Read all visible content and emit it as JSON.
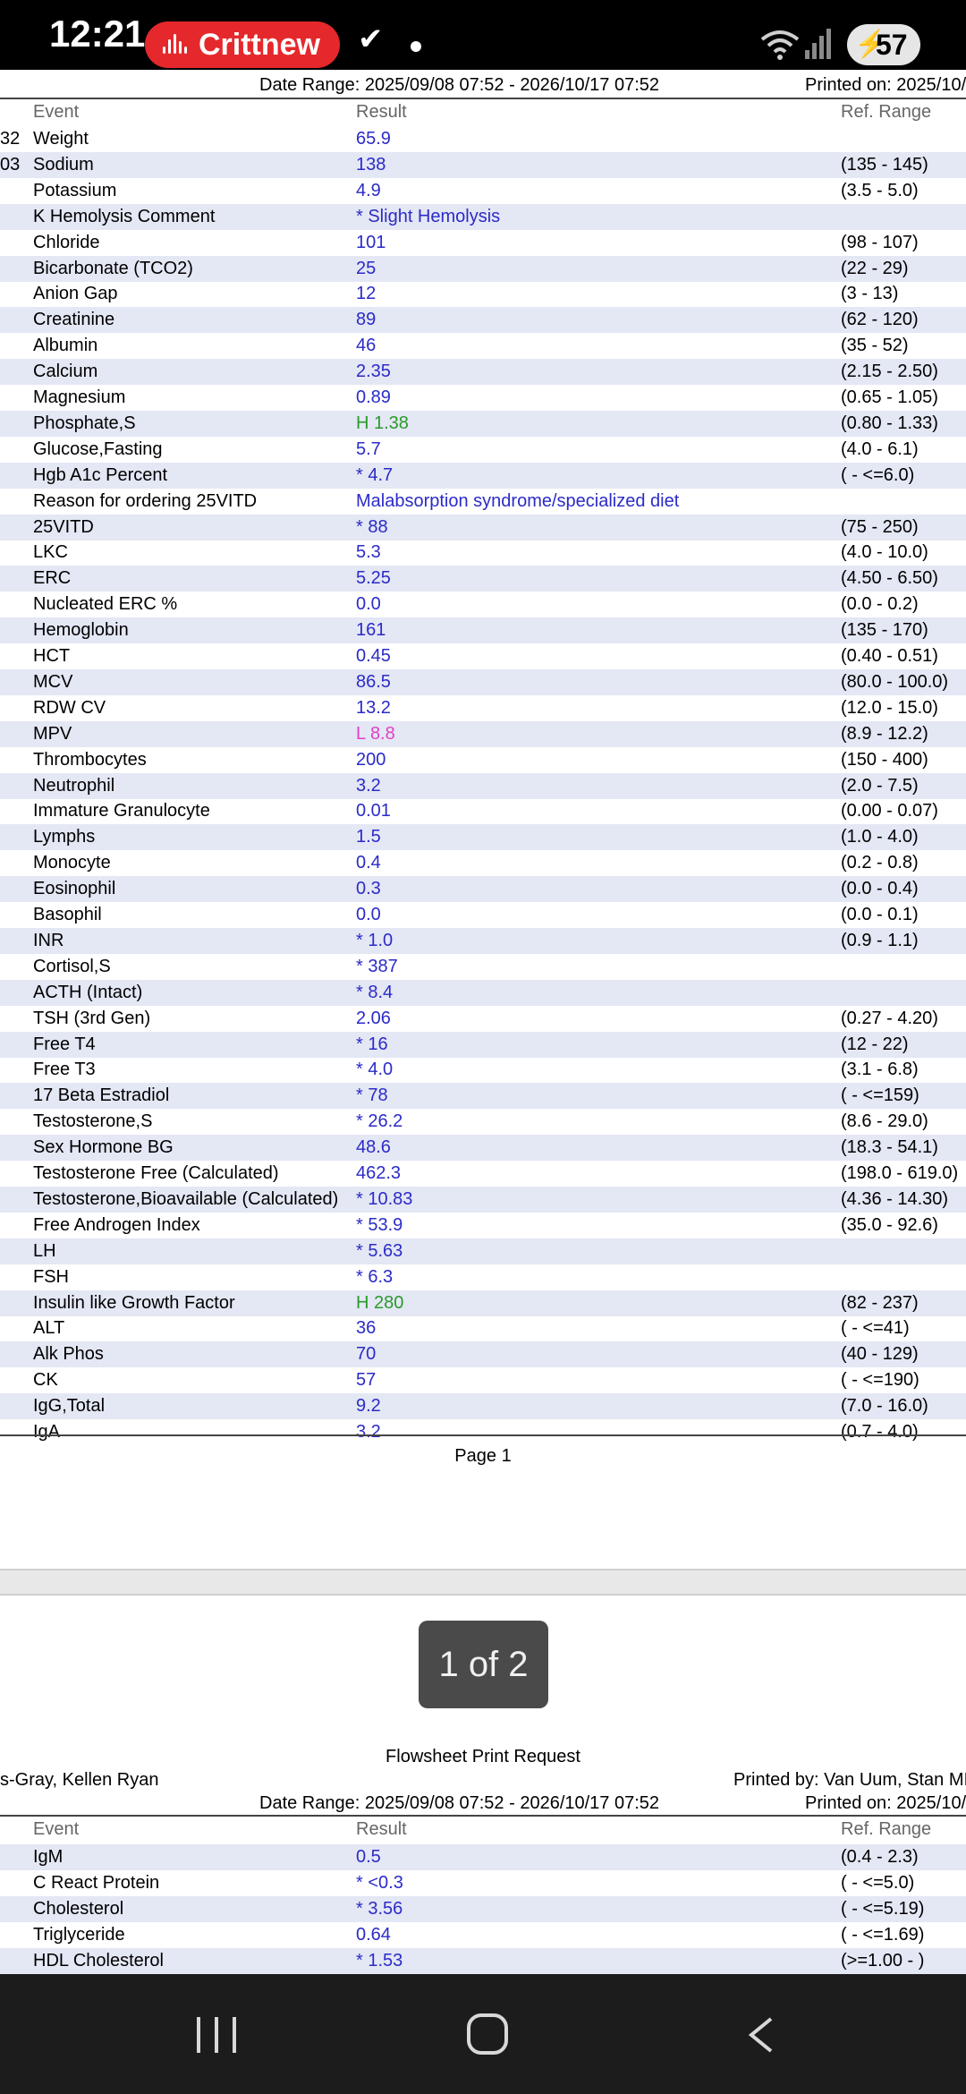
{
  "status_bar": {
    "time": "12:21",
    "recording_label": "Crittnew",
    "battery_percent": "57",
    "icons": [
      "voice-wave-icon",
      "check-icon",
      "dot-icon",
      "wifi-icon",
      "signal-icon",
      "battery-charging-icon"
    ]
  },
  "page1": {
    "date_range": "Date Range: 2025/09/08 07:52 - 2026/10/17 07:52",
    "printed_on": "Printed on: 2025/10/",
    "col_event": "Event",
    "col_result": "Result",
    "col_ref": "Ref. Range",
    "rows": [
      {
        "lead": "32",
        "event": "Weight",
        "result": "65.9",
        "ref": "",
        "flag": ""
      },
      {
        "lead": "03",
        "event": "Sodium",
        "result": "138",
        "ref": "(135 - 145)",
        "flag": ""
      },
      {
        "lead": "",
        "event": "Potassium",
        "result": "4.9",
        "ref": "(3.5 - 5.0)",
        "flag": ""
      },
      {
        "lead": "",
        "event": "K Hemolysis Comment",
        "result": "* Slight Hemolysis",
        "ref": "",
        "flag": ""
      },
      {
        "lead": "",
        "event": "Chloride",
        "result": "101",
        "ref": "(98 - 107)",
        "flag": ""
      },
      {
        "lead": "",
        "event": "Bicarbonate (TCO2)",
        "result": "25",
        "ref": "(22 - 29)",
        "flag": ""
      },
      {
        "lead": "",
        "event": "Anion Gap",
        "result": "12",
        "ref": "(3 - 13)",
        "flag": ""
      },
      {
        "lead": "",
        "event": "Creatinine",
        "result": "89",
        "ref": "(62 - 120)",
        "flag": ""
      },
      {
        "lead": "",
        "event": "Albumin",
        "result": "46",
        "ref": "(35 - 52)",
        "flag": ""
      },
      {
        "lead": "",
        "event": "Calcium",
        "result": "2.35",
        "ref": "(2.15 - 2.50)",
        "flag": ""
      },
      {
        "lead": "",
        "event": "Magnesium",
        "result": "0.89",
        "ref": "(0.65 - 1.05)",
        "flag": ""
      },
      {
        "lead": "",
        "event": "Phosphate,S",
        "result": "H 1.38",
        "ref": "(0.80 - 1.33)",
        "flag": "hi"
      },
      {
        "lead": "",
        "event": "Glucose,Fasting",
        "result": "5.7",
        "ref": "(4.0 - 6.1)",
        "flag": ""
      },
      {
        "lead": "",
        "event": "Hgb A1c Percent",
        "result": "* 4.7",
        "ref": "( - <=6.0)",
        "flag": ""
      },
      {
        "lead": "",
        "event": "Reason for ordering 25VITD",
        "result": "Malabsorption syndrome/specialized diet",
        "ref": "",
        "flag": ""
      },
      {
        "lead": "",
        "event": "25VITD",
        "result": "* 88",
        "ref": "(75 - 250)",
        "flag": ""
      },
      {
        "lead": "",
        "event": "LKC",
        "result": "5.3",
        "ref": "(4.0 - 10.0)",
        "flag": ""
      },
      {
        "lead": "",
        "event": "ERC",
        "result": "5.25",
        "ref": "(4.50 - 6.50)",
        "flag": ""
      },
      {
        "lead": "",
        "event": "Nucleated ERC %",
        "result": "0.0",
        "ref": "(0.0 - 0.2)",
        "flag": ""
      },
      {
        "lead": "",
        "event": "Hemoglobin",
        "result": "161",
        "ref": "(135 - 170)",
        "flag": ""
      },
      {
        "lead": "",
        "event": "HCT",
        "result": "0.45",
        "ref": "(0.40 - 0.51)",
        "flag": ""
      },
      {
        "lead": "",
        "event": "MCV",
        "result": "86.5",
        "ref": "(80.0 - 100.0)",
        "flag": ""
      },
      {
        "lead": "",
        "event": "RDW CV",
        "result": "13.2",
        "ref": "(12.0 - 15.0)",
        "flag": ""
      },
      {
        "lead": "",
        "event": "MPV",
        "result": "L 8.8",
        "ref": "(8.9 - 12.2)",
        "flag": "lo"
      },
      {
        "lead": "",
        "event": "Thrombocytes",
        "result": "200",
        "ref": "(150 - 400)",
        "flag": ""
      },
      {
        "lead": "",
        "event": "Neutrophil",
        "result": "3.2",
        "ref": "(2.0 - 7.5)",
        "flag": ""
      },
      {
        "lead": "",
        "event": "Immature Granulocyte",
        "result": "0.01",
        "ref": "(0.00 - 0.07)",
        "flag": ""
      },
      {
        "lead": "",
        "event": "Lymphs",
        "result": "1.5",
        "ref": "(1.0 - 4.0)",
        "flag": ""
      },
      {
        "lead": "",
        "event": "Monocyte",
        "result": "0.4",
        "ref": "(0.2 - 0.8)",
        "flag": ""
      },
      {
        "lead": "",
        "event": "Eosinophil",
        "result": "0.3",
        "ref": "(0.0 - 0.4)",
        "flag": ""
      },
      {
        "lead": "",
        "event": "Basophil",
        "result": "0.0",
        "ref": "(0.0 - 0.1)",
        "flag": ""
      },
      {
        "lead": "",
        "event": "INR",
        "result": "* 1.0",
        "ref": "(0.9 - 1.1)",
        "flag": ""
      },
      {
        "lead": "",
        "event": "Cortisol,S",
        "result": "* 387",
        "ref": "",
        "flag": ""
      },
      {
        "lead": "",
        "event": "ACTH (Intact)",
        "result": "* 8.4",
        "ref": "",
        "flag": ""
      },
      {
        "lead": "",
        "event": "TSH (3rd Gen)",
        "result": "2.06",
        "ref": "(0.27 - 4.20)",
        "flag": ""
      },
      {
        "lead": "",
        "event": "Free T4",
        "result": "* 16",
        "ref": "(12 - 22)",
        "flag": ""
      },
      {
        "lead": "",
        "event": "Free T3",
        "result": "* 4.0",
        "ref": "(3.1 - 6.8)",
        "flag": ""
      },
      {
        "lead": "",
        "event": "17 Beta Estradiol",
        "result": "* 78",
        "ref": "( - <=159)",
        "flag": ""
      },
      {
        "lead": "",
        "event": "Testosterone,S",
        "result": "* 26.2",
        "ref": "(8.6 - 29.0)",
        "flag": ""
      },
      {
        "lead": "",
        "event": "Sex Hormone BG",
        "result": "48.6",
        "ref": "(18.3 - 54.1)",
        "flag": ""
      },
      {
        "lead": "",
        "event": "Testosterone Free (Calculated)",
        "result": "462.3",
        "ref": "(198.0 - 619.0)",
        "flag": ""
      },
      {
        "lead": "",
        "event": "Testosterone,Bioavailable (Calculated)",
        "result": "* 10.83",
        "ref": "(4.36 - 14.30)",
        "flag": ""
      },
      {
        "lead": "",
        "event": "Free Androgen Index",
        "result": "* 53.9",
        "ref": "(35.0 - 92.6)",
        "flag": ""
      },
      {
        "lead": "",
        "event": "LH",
        "result": "* 5.63",
        "ref": "",
        "flag": ""
      },
      {
        "lead": "",
        "event": "FSH",
        "result": "* 6.3",
        "ref": "",
        "flag": ""
      },
      {
        "lead": "",
        "event": "Insulin like Growth Factor",
        "result": "H 280",
        "ref": "(82 - 237)",
        "flag": "hi"
      },
      {
        "lead": "",
        "event": "ALT",
        "result": "36",
        "ref": "( - <=41)",
        "flag": ""
      },
      {
        "lead": "",
        "event": "Alk Phos",
        "result": "70",
        "ref": "(40 - 129)",
        "flag": ""
      },
      {
        "lead": "",
        "event": "CK",
        "result": "57",
        "ref": "( - <=190)",
        "flag": ""
      },
      {
        "lead": "",
        "event": "IgG,Total",
        "result": "9.2",
        "ref": "(7.0 - 16.0)",
        "flag": ""
      },
      {
        "lead": "",
        "event": "IgA",
        "result": "3.2",
        "ref": "(0.7 - 4.0)",
        "flag": ""
      }
    ],
    "page_label": "Page 1"
  },
  "page_indicator": "1 of 2",
  "page2": {
    "title": "Flowsheet Print Request",
    "patient": "s-Gray, Kellen Ryan",
    "printed_by": "Printed by: Van Uum, Stan  MI",
    "date_range": "Date Range: 2025/09/08 07:52 - 2026/10/17 07:52",
    "printed_on": "Printed on: 2025/10/",
    "col_event": "Event",
    "col_result": "Result",
    "col_ref": "Ref. Range",
    "rows": [
      {
        "lead": "",
        "event": "IgM",
        "result": "0.5",
        "ref": "(0.4 - 2.3)",
        "flag": ""
      },
      {
        "lead": "",
        "event": "C React Protein",
        "result": "* <0.3",
        "ref": "( - <=5.0)",
        "flag": ""
      },
      {
        "lead": "",
        "event": "Cholesterol",
        "result": "* 3.56",
        "ref": "( - <=5.19)",
        "flag": ""
      },
      {
        "lead": "",
        "event": "Triglyceride",
        "result": "0.64",
        "ref": "( - <=1.69)",
        "flag": ""
      },
      {
        "lead": "",
        "event": "HDL Cholesterol",
        "result": "* 1.53",
        "ref": "(>=1.00 - )",
        "flag": ""
      }
    ]
  },
  "nav_bar": {
    "icons": [
      "recents-icon",
      "home-icon",
      "back-icon"
    ]
  }
}
